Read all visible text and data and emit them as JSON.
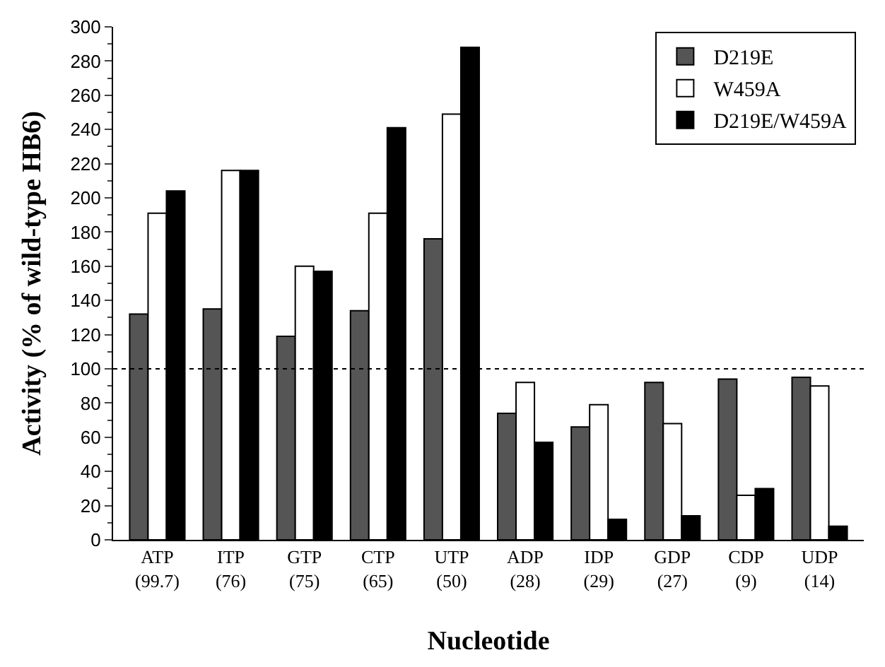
{
  "chart_data": {
    "type": "bar",
    "xlabel": "Nucleotide",
    "ylabel": "Activity (% of wild-type HB6)",
    "categories": [
      "ATP\n(99.7)",
      "ITP\n(76)",
      "GTP\n(75)",
      "CTP\n(65)",
      "UTP\n(50)",
      "ADP\n(28)",
      "IDP\n(29)",
      "GDP\n(27)",
      "CDP\n(9)",
      "UDP\n(14)"
    ],
    "series": [
      {
        "name": "D219E",
        "color": "#555555",
        "values": [
          132,
          135,
          119,
          134,
          176,
          74,
          66,
          92,
          94,
          95
        ]
      },
      {
        "name": "W459A",
        "color": "#ffffff",
        "values": [
          191,
          216,
          160,
          191,
          249,
          92,
          79,
          68,
          26,
          90
        ]
      },
      {
        "name": "D219E/W459A",
        "color": "#000000",
        "values": [
          204,
          216,
          157,
          241,
          288,
          57,
          12,
          14,
          30,
          8
        ]
      }
    ],
    "ylim": [
      0,
      300
    ],
    "yticks": [
      0,
      20,
      40,
      60,
      80,
      100,
      120,
      140,
      160,
      180,
      200,
      220,
      240,
      260,
      280,
      300
    ],
    "ref_lines": [
      {
        "axis": "y",
        "value": 100,
        "line_style": "dotted",
        "color": "#000000"
      }
    ],
    "legend": "top right"
  }
}
